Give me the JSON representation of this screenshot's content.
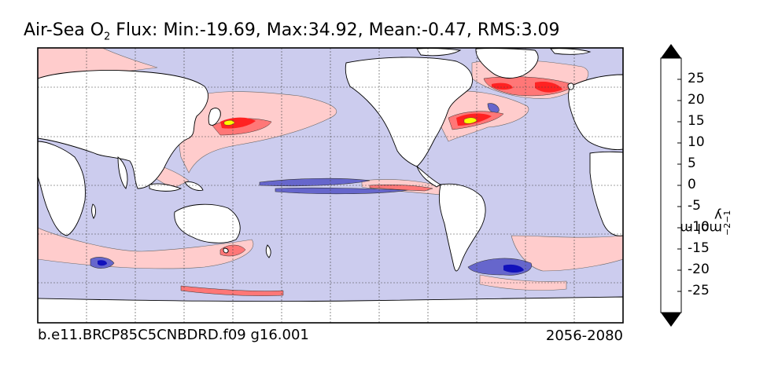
{
  "title": {
    "prefix": "Air-Sea O",
    "subscript": "2",
    "suffix": " Flux: Min:-19.69, Max:34.92, Mean:-0.47, RMS:3.09"
  },
  "footer": {
    "case": "b.e11.BRCP85C5CNBDRD.f09 g16.001",
    "years": "2056-2080"
  },
  "colorbar": {
    "unit_parts": [
      "mol m",
      "−2",
      " y",
      "−1"
    ],
    "ticks": [
      {
        "label": "25",
        "value": 25
      },
      {
        "label": "20",
        "value": 20
      },
      {
        "label": "15",
        "value": 15
      },
      {
        "label": "10",
        "value": 10
      },
      {
        "label": "5",
        "value": 5
      },
      {
        "label": "0",
        "value": 0
      },
      {
        "label": "-5",
        "value": -5
      },
      {
        "label": "-10",
        "value": -10
      },
      {
        "label": "-15",
        "value": -15
      },
      {
        "label": "-20",
        "value": -20
      },
      {
        "label": "-25",
        "value": -25
      }
    ],
    "bins": [
      {
        "range": [
          25,
          30
        ],
        "color": "#ffff00"
      },
      {
        "range": [
          20,
          25
        ],
        "color": "#ff9900"
      },
      {
        "range": [
          15,
          20
        ],
        "color": "#ff4400"
      },
      {
        "range": [
          10,
          15
        ],
        "color": "#ff2222"
      },
      {
        "range": [
          5,
          10
        ],
        "color": "#ff7777"
      },
      {
        "range": [
          0,
          5
        ],
        "color": "#ffcccc"
      },
      {
        "range": [
          -5,
          0
        ],
        "color": "#ccccee"
      },
      {
        "range": [
          -10,
          -5
        ],
        "color": "#6666cc"
      },
      {
        "range": [
          -15,
          -10
        ],
        "color": "#1111bb"
      },
      {
        "range": [
          -20,
          -15
        ],
        "color": "#0044cc"
      },
      {
        "range": [
          -25,
          -20
        ],
        "color": "#00aadd"
      },
      {
        "range": [
          -30,
          -25
        ],
        "color": "#00ffff"
      }
    ],
    "extend": "both"
  },
  "colors": {
    "ocean_default": "#ccccee",
    "land": "#ffffff",
    "positive_low": "#ffcccc",
    "positive_mid": "#ff7777",
    "positive_high": "#ff2222",
    "positive_max": "#ffff00",
    "negative_mid": "#6666cc",
    "negative_high": "#1111bb"
  }
}
